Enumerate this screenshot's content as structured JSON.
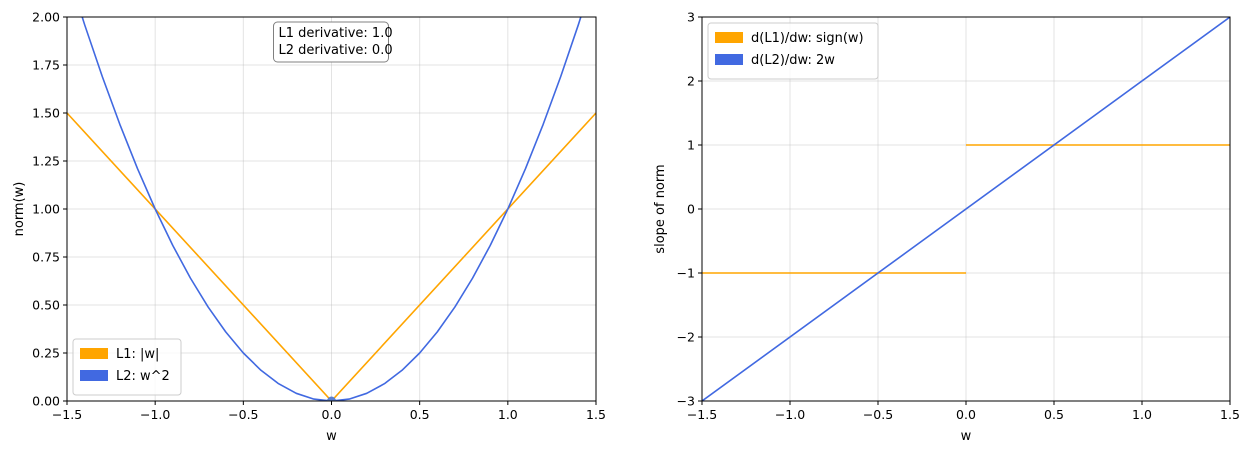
{
  "chart_data": [
    {
      "type": "line",
      "xlabel": "w",
      "ylabel": "norm(w)",
      "xlim": [
        -1.5,
        1.5
      ],
      "ylim": [
        0,
        2
      ],
      "xticks": [
        "−1.5",
        "−1.0",
        "−0.5",
        "0.0",
        "0.5",
        "1.0",
        "1.5"
      ],
      "xtick_values": [
        -1.5,
        -1.0,
        -0.5,
        0.0,
        0.5,
        1.0,
        1.5
      ],
      "yticks": [
        "0.00",
        "0.25",
        "0.50",
        "0.75",
        "1.00",
        "1.25",
        "1.50",
        "1.75",
        "2.00"
      ],
      "ytick_values": [
        0,
        0.25,
        0.5,
        0.75,
        1.0,
        1.25,
        1.5,
        1.75,
        2.0
      ],
      "grid": true,
      "legend_position": "lower-left",
      "series": [
        {
          "name": "L1: |w|",
          "color": "#FFA500",
          "x": [
            -1.5,
            0,
            1.5
          ],
          "y": [
            1.5,
            0,
            1.5
          ]
        },
        {
          "name": "L2: w^2",
          "color": "#4169E1",
          "x": [
            -1.5,
            -1.4,
            -1.3,
            -1.2,
            -1.1,
            -1.0,
            -0.9,
            -0.8,
            -0.7,
            -0.6,
            -0.5,
            -0.4,
            -0.3,
            -0.2,
            -0.1,
            0,
            0.1,
            0.2,
            0.3,
            0.4,
            0.5,
            0.6,
            0.7,
            0.8,
            0.9,
            1.0,
            1.1,
            1.2,
            1.3,
            1.4,
            1.5
          ],
          "y": [
            2.25,
            1.96,
            1.69,
            1.44,
            1.21,
            1.0,
            0.81,
            0.64,
            0.49,
            0.36,
            0.25,
            0.16,
            0.09,
            0.04,
            0.01,
            0,
            0.01,
            0.04,
            0.09,
            0.16,
            0.25,
            0.36,
            0.49,
            0.64,
            0.81,
            1.0,
            1.21,
            1.44,
            1.69,
            1.96,
            2.25
          ]
        }
      ],
      "marker_point": {
        "x": 0,
        "y": 0,
        "color": "#5A7FD0"
      },
      "annotation": {
        "line1": "L1 derivative: 1.0",
        "line2": "L2 derivative: 0.0",
        "position": "top-center"
      }
    },
    {
      "type": "line",
      "xlabel": "w",
      "ylabel": "slope of norm",
      "xlim": [
        -1.5,
        1.5
      ],
      "ylim": [
        -3,
        3
      ],
      "xticks": [
        "−1.5",
        "−1.0",
        "−0.5",
        "0.0",
        "0.5",
        "1.0",
        "1.5"
      ],
      "xtick_values": [
        -1.5,
        -1.0,
        -0.5,
        0.0,
        0.5,
        1.0,
        1.5
      ],
      "yticks": [
        "−3",
        "−2",
        "−1",
        "0",
        "1",
        "2",
        "3"
      ],
      "ytick_values": [
        -3,
        -2,
        -1,
        0,
        1,
        2,
        3
      ],
      "grid": true,
      "legend_position": "upper-left",
      "series": [
        {
          "name": "d(L1)/dw: sign(w)",
          "color": "#FFA500",
          "segments": [
            {
              "x": [
                -1.5,
                0
              ],
              "y": [
                -1,
                -1
              ]
            },
            {
              "x": [
                0,
                1.5
              ],
              "y": [
                1,
                1
              ]
            }
          ]
        },
        {
          "name": "d(L2)/dw: 2w",
          "color": "#4169E1",
          "x": [
            -1.5,
            1.5
          ],
          "y": [
            -3,
            3
          ]
        }
      ]
    }
  ]
}
